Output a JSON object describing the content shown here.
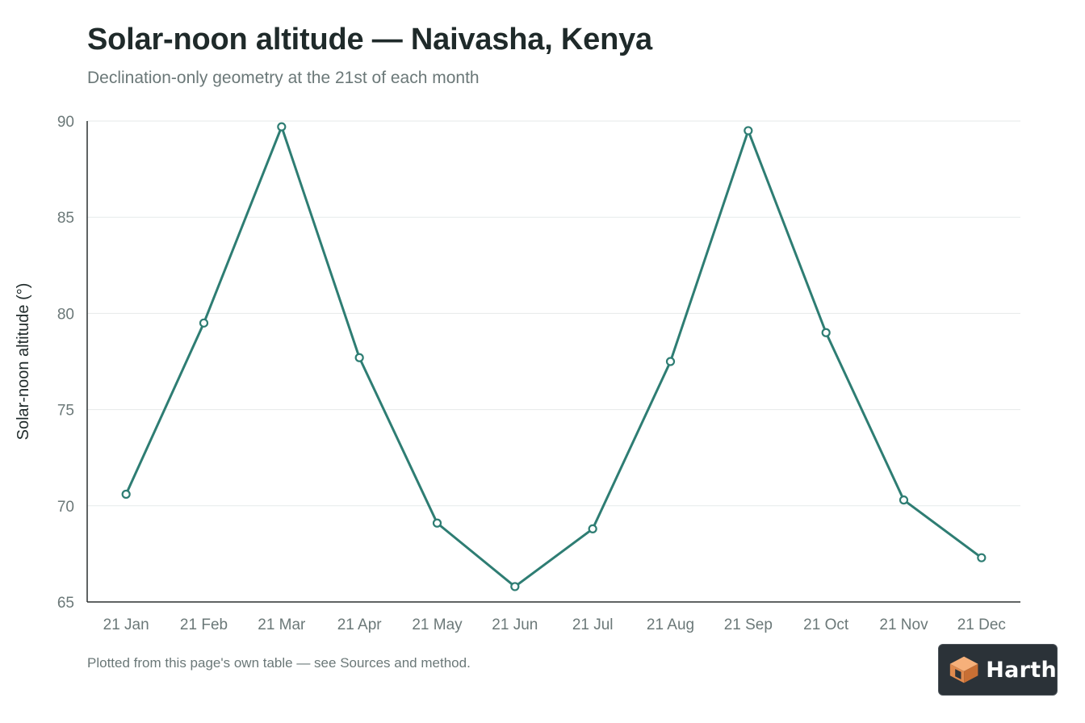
{
  "title": "Solar-noon altitude — Naivasha, Kenya",
  "subtitle": "Declination-only geometry at the 21st of each month",
  "footnote": "Plotted from this page's own table — see Sources and method.",
  "logo": {
    "text": "Harth",
    "icon": "house-cube-icon"
  },
  "colors": {
    "series": "#2e7d73",
    "grid": "#e6eaea",
    "axis": "#2b3030",
    "tick_text": "#6b7878",
    "title": "#1f2a2a",
    "marker_fill": "#ffffff"
  },
  "chart_data": {
    "type": "line",
    "title": "Solar-noon altitude — Naivasha, Kenya",
    "subtitle": "Declination-only geometry at the 21st of each month",
    "xlabel": "",
    "ylabel": "Solar-noon altitude (°)",
    "categories": [
      "21 Jan",
      "21 Feb",
      "21 Mar",
      "21 Apr",
      "21 May",
      "21 Jun",
      "21 Jul",
      "21 Aug",
      "21 Sep",
      "21 Oct",
      "21 Nov",
      "21 Dec"
    ],
    "series": [
      {
        "values": [
          70.6,
          79.5,
          89.7,
          77.7,
          69.1,
          65.8,
          68.8,
          77.5,
          89.5,
          79.0,
          70.3,
          67.3
        ]
      }
    ],
    "ylim": [
      65,
      90
    ],
    "yticks": [
      65,
      70,
      75,
      80,
      85,
      90
    ],
    "grid": true,
    "legend": "none"
  }
}
